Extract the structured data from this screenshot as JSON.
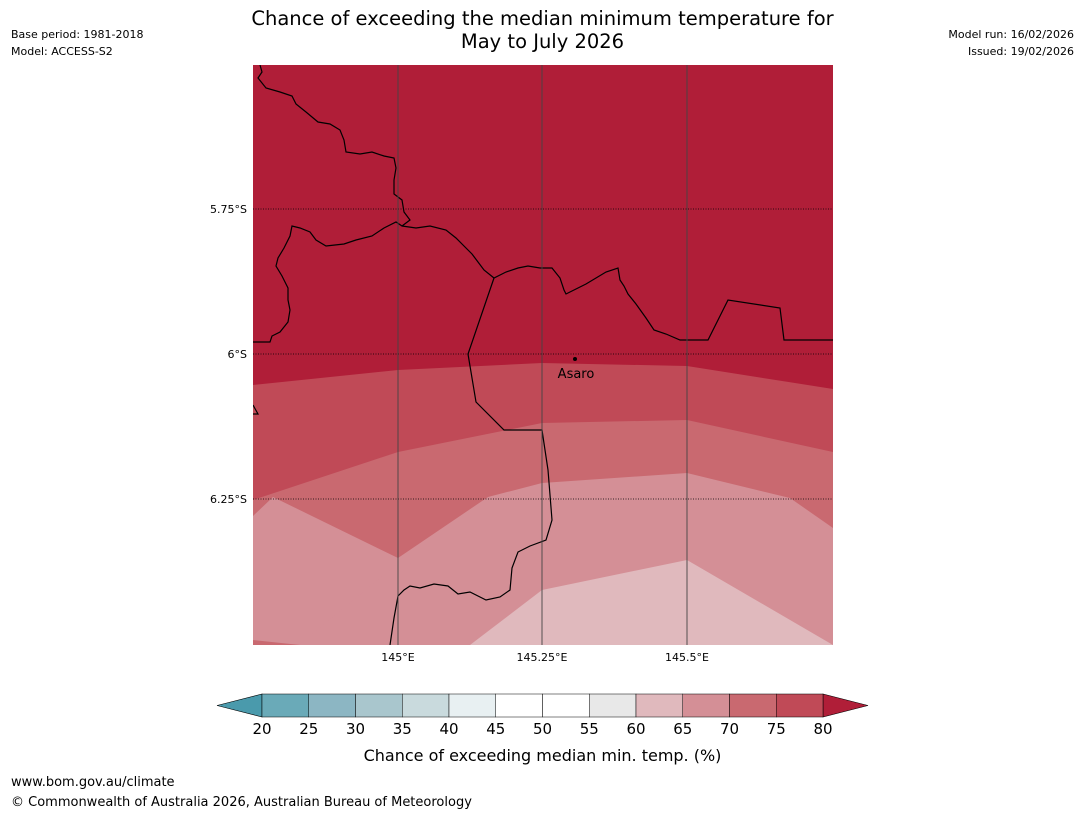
{
  "header": {
    "title_line1": "Chance of exceeding the median minimum temperature for",
    "title_line2": "May to July 2026",
    "base_period": "Base period: 1981-2018",
    "model": "Model: ACCESS-S2",
    "model_run": "Model run: 16/02/2026",
    "issued": "Issued: 19/02/2026"
  },
  "map": {
    "lat_labels": [
      "5.75°S",
      "6°S",
      "6.25°S"
    ],
    "lon_labels": [
      "145°E",
      "145.25°E",
      "145.5°E"
    ],
    "place": {
      "name": "Asaro",
      "lat": -6.01,
      "lon": 145.3
    }
  },
  "colorbar": {
    "label": "Chance of exceeding median min. temp. (%)",
    "ticks": [
      "20",
      "25",
      "30",
      "35",
      "40",
      "45",
      "50",
      "55",
      "60",
      "65",
      "70",
      "75",
      "80"
    ],
    "colors": [
      "#6aaab8",
      "#8cb6c3",
      "#a9c6cd",
      "#c9dadd",
      "#e8f0f2",
      "#ffffff",
      "#ffffff",
      "#e8e8e8",
      "#e0b9bd",
      "#d48f96",
      "#c96970",
      "#c04a57"
    ],
    "under_color": "#4a9aac",
    "over_color": "#b01e38"
  },
  "footer": {
    "url": "www.bom.gov.au/climate",
    "copyright": "© Commonwealth of Australia 2026, Australian Bureau of Meteorology"
  }
}
